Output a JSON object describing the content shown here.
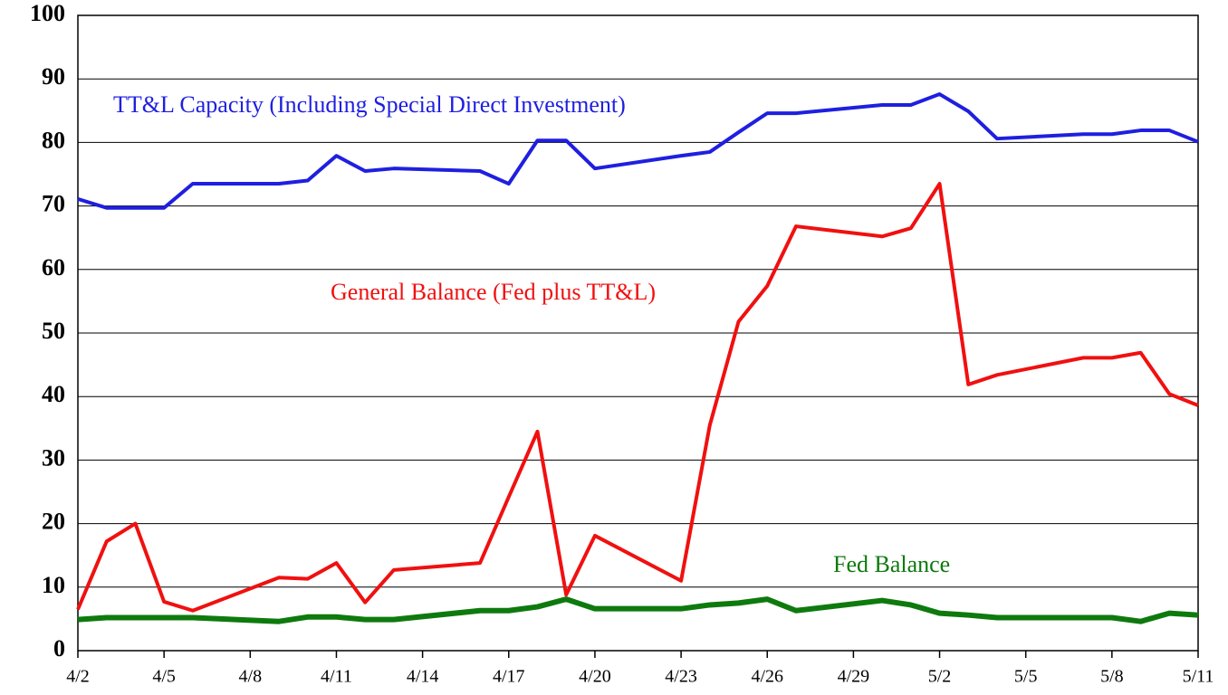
{
  "chart_data": {
    "type": "line",
    "x": [
      0,
      1,
      2,
      3,
      4,
      7,
      8,
      9,
      10,
      11,
      14,
      15,
      16,
      17,
      18,
      21,
      22,
      23,
      24,
      25,
      28,
      29,
      30,
      31,
      32,
      35,
      36,
      37,
      38,
      39
    ],
    "xlim": [
      0,
      39
    ],
    "xticks": [
      {
        "value": 0,
        "label": "4/2"
      },
      {
        "value": 3,
        "label": "4/5"
      },
      {
        "value": 6,
        "label": "4/8"
      },
      {
        "value": 9,
        "label": "4/11"
      },
      {
        "value": 12,
        "label": "4/14"
      },
      {
        "value": 15,
        "label": "4/17"
      },
      {
        "value": 18,
        "label": "4/20"
      },
      {
        "value": 21,
        "label": "4/23"
      },
      {
        "value": 24,
        "label": "4/26"
      },
      {
        "value": 27,
        "label": "4/29"
      },
      {
        "value": 30,
        "label": "5/2"
      },
      {
        "value": 33,
        "label": "5/5"
      },
      {
        "value": 36,
        "label": "5/8"
      },
      {
        "value": 39,
        "label": "5/11"
      }
    ],
    "ylim": [
      0,
      100
    ],
    "yticks": [
      0,
      10,
      20,
      30,
      40,
      50,
      60,
      70,
      80,
      90,
      100
    ],
    "grid": true,
    "series": [
      {
        "name": "TT&L Capacity (Including Special Direct Investment)",
        "color": "#1f1fe0",
        "values": [
          71.1,
          69.7,
          69.7,
          69.7,
          73.5,
          73.5,
          74,
          77.9,
          75.5,
          75.9,
          75.5,
          73.5,
          80.3,
          80.3,
          75.9,
          77.9,
          78.5,
          81.6,
          84.6,
          84.6,
          85.9,
          85.9,
          87.6,
          84.9,
          80.6,
          81.3,
          81.3,
          81.9,
          81.9,
          80.1
        ]
      },
      {
        "name": "General Balance (Fed plus TT&L)",
        "color": "#f01010",
        "values": [
          6.5,
          17.2,
          20,
          7.7,
          6.3,
          11.5,
          11.3,
          13.8,
          7.6,
          12.7,
          13.8,
          24.2,
          34.5,
          8.8,
          18.1,
          11,
          35.5,
          51.8,
          57.4,
          66.8,
          65.2,
          66.5,
          73.5,
          41.9,
          43.4,
          46.1,
          46.1,
          46.9,
          40.4,
          38.6
        ]
      },
      {
        "name": "Fed Balance",
        "color": "#0e7a0e",
        "values": [
          4.9,
          5.2,
          5.2,
          5.2,
          5.2,
          4.6,
          5.3,
          5.3,
          4.9,
          4.9,
          6.3,
          6.3,
          6.9,
          8.1,
          6.6,
          6.6,
          7.2,
          7.5,
          8.1,
          6.3,
          7.9,
          7.2,
          5.9,
          5.6,
          5.2,
          5.2,
          5.2,
          4.6,
          5.9,
          5.6
        ]
      }
    ]
  }
}
